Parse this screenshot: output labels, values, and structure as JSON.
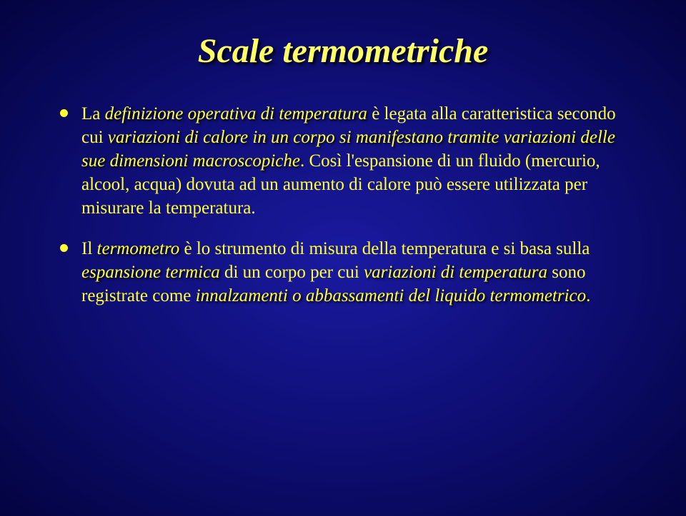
{
  "colors": {
    "background_center": "#1a1aa0",
    "background_mid": "#0d0d70",
    "background_edge": "#030340",
    "text_color": "#ffff33",
    "title_color": "#ffff66",
    "shadow_color": "#000000",
    "bullet_color": "#ffff33"
  },
  "typography": {
    "family": "Times New Roman",
    "title_fontsize_pt": 36,
    "body_fontsize_pt": 19,
    "title_bold": true,
    "title_italic": true
  },
  "title": "Scale termometriche",
  "bullets": [
    {
      "segments": [
        {
          "text": "La ",
          "style": "plain"
        },
        {
          "text": "definizione operativa di temperatura",
          "style": "shadow-italic"
        },
        {
          "text": " è legata alla caratteristica secondo cui ",
          "style": "plain"
        },
        {
          "text": "variazioni di calore in un corpo si manifestano tramite variazioni delle sue dimensioni macroscopiche",
          "style": "shadow-italic"
        },
        {
          "text": ". Così l'espansione di un fluido (mercurio, alcool, acqua) dovuta ad un aumento di calore può essere utilizzata per misurare la temperatura.",
          "style": "plain"
        }
      ]
    },
    {
      "segments": [
        {
          "text": "Il ",
          "style": "plain"
        },
        {
          "text": "termometro",
          "style": "shadow-italic"
        },
        {
          "text": " è lo strumento di misura della temperatura e si basa sulla ",
          "style": "plain"
        },
        {
          "text": "espansione termica",
          "style": "shadow-italic"
        },
        {
          "text": " di un corpo per cui ",
          "style": "plain"
        },
        {
          "text": "variazioni di temperatura",
          "style": "shadow-italic"
        },
        {
          "text": " sono registrate come ",
          "style": "plain"
        },
        {
          "text": "innalzamenti o abbassamenti del liquido termometrico",
          "style": "shadow-italic"
        },
        {
          "text": ".",
          "style": "plain"
        }
      ]
    }
  ]
}
